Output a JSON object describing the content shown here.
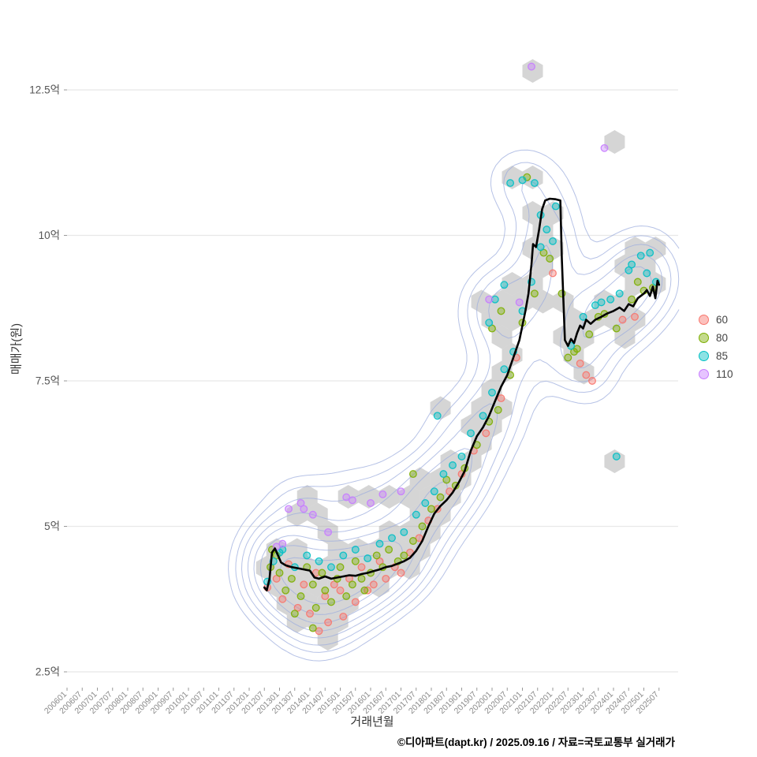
{
  "figure": {
    "y_axis_title": "매매가(원)",
    "x_axis_title": "거래년월",
    "caption": "©디아파트(dapt.kr) / 2025.09.16 / 자료=국토교통부 실거래가"
  },
  "chart_data": {
    "type": "scatter",
    "title": "",
    "xlabel": "거래년월",
    "ylabel": "매매가(원)",
    "legend_position": "right",
    "grid": "horizontal",
    "x_tick_labels": [
      "200601",
      "200607",
      "200701",
      "200707",
      "200801",
      "200807",
      "200901",
      "200907",
      "201001",
      "201007",
      "201101",
      "201107",
      "201201",
      "201207",
      "201301",
      "201307",
      "201401",
      "201407",
      "201501",
      "201507",
      "201601",
      "201607",
      "201701",
      "201707",
      "201801",
      "201807",
      "201901",
      "201907",
      "202001",
      "202007",
      "202101",
      "202107",
      "202201",
      "202207",
      "202301",
      "202307",
      "202401",
      "202407",
      "202501",
      "202507"
    ],
    "y_ticks": [
      {
        "value": 2.5,
        "label": "2.5억"
      },
      {
        "value": 5,
        "label": "5억"
      },
      {
        "value": 7.5,
        "label": "7.5억"
      },
      {
        "value": 10,
        "label": "10억"
      },
      {
        "value": 12.5,
        "label": "12.5억"
      }
    ],
    "y_unit": "억",
    "series": [
      {
        "name": "60",
        "color": "#F8766D",
        "points": [
          [
            2012.6,
            3.95
          ],
          [
            2012.9,
            4.1
          ],
          [
            2013.1,
            3.75
          ],
          [
            2013.3,
            4.35
          ],
          [
            2013.6,
            3.6
          ],
          [
            2013.8,
            4.0
          ],
          [
            2014.0,
            3.5
          ],
          [
            2014.2,
            4.2
          ],
          [
            2014.3,
            3.2
          ],
          [
            2014.5,
            3.8
          ],
          [
            2014.6,
            3.35
          ],
          [
            2014.8,
            4.0
          ],
          [
            2015.0,
            3.9
          ],
          [
            2015.1,
            3.45
          ],
          [
            2015.3,
            4.1
          ],
          [
            2015.5,
            3.7
          ],
          [
            2015.7,
            4.3
          ],
          [
            2015.9,
            3.9
          ],
          [
            2016.1,
            4.0
          ],
          [
            2016.3,
            4.4
          ],
          [
            2016.5,
            4.1
          ],
          [
            2016.8,
            4.3
          ],
          [
            2017.0,
            4.2
          ],
          [
            2017.3,
            4.55
          ],
          [
            2017.6,
            4.8
          ],
          [
            2017.9,
            5.1
          ],
          [
            2018.2,
            5.3
          ],
          [
            2018.6,
            5.6
          ],
          [
            2019.0,
            5.9
          ],
          [
            2019.4,
            6.3
          ],
          [
            2019.8,
            6.6
          ],
          [
            2020.3,
            7.2
          ],
          [
            2020.8,
            7.9
          ],
          [
            2022.0,
            9.35
          ],
          [
            2022.9,
            7.8
          ],
          [
            2023.1,
            7.6
          ],
          [
            2023.3,
            7.5
          ],
          [
            2024.3,
            8.55
          ],
          [
            2024.7,
            8.6
          ]
        ]
      },
      {
        "name": "80",
        "color": "#7CAE00",
        "points": [
          [
            2012.7,
            4.3
          ],
          [
            2012.75,
            4.6
          ],
          [
            2012.9,
            4.5
          ],
          [
            2013.0,
            4.2
          ],
          [
            2013.2,
            3.9
          ],
          [
            2013.4,
            4.1
          ],
          [
            2013.5,
            3.5
          ],
          [
            2013.7,
            3.8
          ],
          [
            2013.9,
            4.3
          ],
          [
            2014.1,
            3.25
          ],
          [
            2014.1,
            4.0
          ],
          [
            2014.2,
            3.6
          ],
          [
            2014.4,
            4.2
          ],
          [
            2014.5,
            3.9
          ],
          [
            2014.7,
            3.7
          ],
          [
            2014.9,
            4.1
          ],
          [
            2015.0,
            4.3
          ],
          [
            2015.2,
            3.8
          ],
          [
            2015.4,
            4.0
          ],
          [
            2015.5,
            4.4
          ],
          [
            2015.7,
            4.1
          ],
          [
            2015.8,
            3.9
          ],
          [
            2016.0,
            4.2
          ],
          [
            2016.2,
            4.5
          ],
          [
            2016.4,
            4.3
          ],
          [
            2016.6,
            4.6
          ],
          [
            2016.9,
            4.4
          ],
          [
            2017.1,
            4.5
          ],
          [
            2017.4,
            4.75
          ],
          [
            2017.4,
            5.9
          ],
          [
            2017.7,
            5.0
          ],
          [
            2018.0,
            5.3
          ],
          [
            2018.3,
            5.5
          ],
          [
            2018.5,
            5.8
          ],
          [
            2018.8,
            5.7
          ],
          [
            2019.1,
            6.0
          ],
          [
            2019.5,
            6.4
          ],
          [
            2019.9,
            6.8
          ],
          [
            2020.0,
            8.4
          ],
          [
            2020.2,
            7.0
          ],
          [
            2020.3,
            8.7
          ],
          [
            2020.6,
            7.6
          ],
          [
            2021.0,
            8.5
          ],
          [
            2021.15,
            11.0
          ],
          [
            2021.4,
            9.0
          ],
          [
            2021.7,
            9.7
          ],
          [
            2021.9,
            9.6
          ],
          [
            2022.3,
            9.0
          ],
          [
            2022.5,
            7.9
          ],
          [
            2022.7,
            8.0
          ],
          [
            2022.8,
            8.05
          ],
          [
            2023.2,
            8.3
          ],
          [
            2023.5,
            8.6
          ],
          [
            2023.7,
            8.65
          ],
          [
            2024.1,
            8.4
          ],
          [
            2024.6,
            8.9
          ],
          [
            2024.8,
            9.2
          ],
          [
            2025.0,
            9.05
          ],
          [
            2025.3,
            9.1
          ]
        ]
      },
      {
        "name": "85",
        "color": "#00BFC4",
        "points": [
          [
            2012.6,
            4.05
          ],
          [
            2012.8,
            4.4
          ],
          [
            2013.0,
            4.55
          ],
          [
            2013.1,
            4.6
          ],
          [
            2013.5,
            4.3
          ],
          [
            2013.9,
            4.5
          ],
          [
            2014.3,
            4.4
          ],
          [
            2014.7,
            4.3
          ],
          [
            2015.1,
            4.5
          ],
          [
            2015.5,
            4.6
          ],
          [
            2015.9,
            4.45
          ],
          [
            2016.3,
            4.7
          ],
          [
            2016.7,
            4.8
          ],
          [
            2017.1,
            4.9
          ],
          [
            2017.5,
            5.2
          ],
          [
            2017.8,
            5.4
          ],
          [
            2018.1,
            5.6
          ],
          [
            2018.2,
            6.9
          ],
          [
            2018.4,
            5.9
          ],
          [
            2018.7,
            6.05
          ],
          [
            2019.0,
            6.2
          ],
          [
            2019.3,
            6.6
          ],
          [
            2019.7,
            6.9
          ],
          [
            2019.9,
            8.5
          ],
          [
            2020.0,
            7.3
          ],
          [
            2020.1,
            8.9
          ],
          [
            2020.4,
            7.7
          ],
          [
            2020.4,
            9.15
          ],
          [
            2020.6,
            10.9
          ],
          [
            2020.7,
            8.0
          ],
          [
            2021.0,
            8.7
          ],
          [
            2021.0,
            10.95
          ],
          [
            2021.3,
            9.2
          ],
          [
            2021.4,
            10.9
          ],
          [
            2021.6,
            9.8
          ],
          [
            2021.6,
            10.35
          ],
          [
            2021.8,
            10.1
          ],
          [
            2022.0,
            9.9
          ],
          [
            2022.1,
            10.5
          ],
          [
            2022.6,
            8.1
          ],
          [
            2023.0,
            8.6
          ],
          [
            2023.4,
            8.8
          ],
          [
            2023.6,
            8.85
          ],
          [
            2023.9,
            8.9
          ],
          [
            2024.1,
            6.2
          ],
          [
            2024.2,
            9.0
          ],
          [
            2024.5,
            9.4
          ],
          [
            2024.6,
            9.5
          ],
          [
            2024.9,
            9.65
          ],
          [
            2025.1,
            9.35
          ],
          [
            2025.2,
            9.7
          ],
          [
            2025.4,
            9.2
          ]
        ]
      },
      {
        "name": "110",
        "color": "#C77CFF",
        "points": [
          [
            2012.9,
            4.65
          ],
          [
            2013.1,
            4.7
          ],
          [
            2013.3,
            5.3
          ],
          [
            2013.7,
            5.4
          ],
          [
            2013.8,
            5.3
          ],
          [
            2014.1,
            5.2
          ],
          [
            2014.6,
            4.9
          ],
          [
            2015.2,
            5.5
          ],
          [
            2015.4,
            5.45
          ],
          [
            2016.0,
            5.4
          ],
          [
            2016.4,
            5.55
          ],
          [
            2017.0,
            5.6
          ],
          [
            2019.9,
            8.9
          ],
          [
            2020.9,
            8.85
          ],
          [
            2021.3,
            12.9
          ],
          [
            2023.7,
            11.5
          ]
        ]
      }
    ],
    "trend_line": {
      "color": "#000000",
      "points": [
        [
          2012.5,
          3.95
        ],
        [
          2012.58,
          3.9
        ],
        [
          2012.67,
          4.1
        ],
        [
          2012.75,
          4.55
        ],
        [
          2012.85,
          4.62
        ],
        [
          2012.95,
          4.5
        ],
        [
          2013.05,
          4.38
        ],
        [
          2013.2,
          4.33
        ],
        [
          2013.4,
          4.3
        ],
        [
          2013.6,
          4.28
        ],
        [
          2013.8,
          4.26
        ],
        [
          2014.0,
          4.24
        ],
        [
          2014.15,
          4.12
        ],
        [
          2014.3,
          4.1
        ],
        [
          2014.5,
          4.14
        ],
        [
          2014.7,
          4.1
        ],
        [
          2014.9,
          4.12
        ],
        [
          2015.1,
          4.14
        ],
        [
          2015.3,
          4.16
        ],
        [
          2015.5,
          4.15
        ],
        [
          2015.7,
          4.18
        ],
        [
          2015.9,
          4.2
        ],
        [
          2016.1,
          4.23
        ],
        [
          2016.3,
          4.26
        ],
        [
          2016.5,
          4.3
        ],
        [
          2016.7,
          4.32
        ],
        [
          2016.9,
          4.36
        ],
        [
          2017.1,
          4.4
        ],
        [
          2017.3,
          4.46
        ],
        [
          2017.5,
          4.58
        ],
        [
          2017.7,
          4.75
        ],
        [
          2017.9,
          5.0
        ],
        [
          2018.1,
          5.22
        ],
        [
          2018.3,
          5.35
        ],
        [
          2018.5,
          5.45
        ],
        [
          2018.7,
          5.58
        ],
        [
          2018.9,
          5.75
        ],
        [
          2019.1,
          5.95
        ],
        [
          2019.3,
          6.3
        ],
        [
          2019.5,
          6.55
        ],
        [
          2019.7,
          6.7
        ],
        [
          2019.9,
          6.9
        ],
        [
          2020.1,
          7.15
        ],
        [
          2020.3,
          7.4
        ],
        [
          2020.5,
          7.6
        ],
        [
          2020.7,
          7.9
        ],
        [
          2020.9,
          8.2
        ],
        [
          2021.0,
          8.45
        ],
        [
          2021.1,
          8.7
        ],
        [
          2021.2,
          9.0
        ],
        [
          2021.3,
          9.5
        ],
        [
          2021.35,
          9.85
        ],
        [
          2021.45,
          9.8
        ],
        [
          2021.55,
          10.1
        ],
        [
          2021.65,
          10.45
        ],
        [
          2021.75,
          10.6
        ],
        [
          2021.9,
          10.63
        ],
        [
          2022.1,
          10.62
        ],
        [
          2022.25,
          10.6
        ],
        [
          2022.3,
          9.6
        ],
        [
          2022.4,
          8.2
        ],
        [
          2022.5,
          8.1
        ],
        [
          2022.6,
          8.22
        ],
        [
          2022.7,
          8.15
        ],
        [
          2022.8,
          8.32
        ],
        [
          2022.9,
          8.45
        ],
        [
          2023.0,
          8.4
        ],
        [
          2023.1,
          8.55
        ],
        [
          2023.25,
          8.48
        ],
        [
          2023.4,
          8.55
        ],
        [
          2023.6,
          8.6
        ],
        [
          2023.8,
          8.66
        ],
        [
          2024.0,
          8.7
        ],
        [
          2024.2,
          8.76
        ],
        [
          2024.35,
          8.7
        ],
        [
          2024.5,
          8.82
        ],
        [
          2024.65,
          8.78
        ],
        [
          2024.8,
          8.92
        ],
        [
          2025.0,
          9.0
        ],
        [
          2025.1,
          9.06
        ],
        [
          2025.2,
          8.96
        ],
        [
          2025.3,
          9.12
        ],
        [
          2025.38,
          8.92
        ],
        [
          2025.45,
          9.22
        ],
        [
          2025.5,
          9.15
        ]
      ]
    },
    "style": {
      "hex_fill": "#9b9b9b",
      "contour_stroke": "#9daede",
      "grid_color": "#e8e8e8",
      "x_tick_label_color": "#8a8a8a",
      "y_tick_label_color": "#555555",
      "tick_mark_color": "#999999",
      "trend_color": "#000000"
    }
  }
}
